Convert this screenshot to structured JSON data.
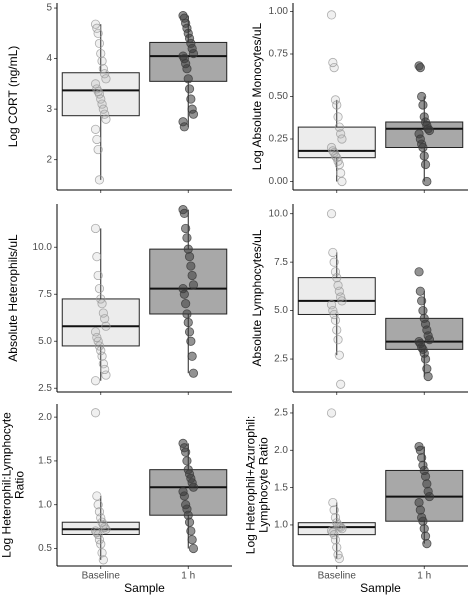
{
  "chart_data": [
    {
      "type": "box",
      "ylabel": [
        "Log CORT (ng/mL)"
      ],
      "ylim": [
        1.4,
        5.1
      ],
      "yticks": [
        2,
        3,
        4,
        5
      ],
      "boxes": [
        {
          "color": "#ececec",
          "point_color": "#9a9a9a",
          "min": 1.6,
          "q1": 2.87,
          "median": 3.37,
          "q3": 3.72,
          "max": 4.68,
          "points": [
            4.68,
            4.6,
            4.5,
            4.3,
            4.1,
            3.95,
            3.8,
            3.7,
            3.6,
            3.5,
            3.4,
            3.35,
            3.3,
            3.2,
            3.1,
            3.0,
            2.9,
            2.8,
            2.6,
            2.4,
            2.2,
            1.6
          ]
        },
        {
          "color": "#a8a8a8",
          "point_color": "#3a3a3a",
          "min": 2.65,
          "q1": 3.55,
          "median": 4.05,
          "q3": 4.32,
          "max": 4.85,
          "points": [
            4.85,
            4.8,
            4.7,
            4.6,
            4.5,
            4.4,
            4.3,
            4.2,
            4.1,
            4.05,
            4.0,
            3.9,
            3.8,
            3.6,
            3.4,
            3.2,
            3.0,
            2.9,
            2.75,
            2.65
          ]
        }
      ]
    },
    {
      "type": "box",
      "ylabel": [
        "Log Absolute Monocytes/uL"
      ],
      "ylim": [
        -0.05,
        1.05
      ],
      "yticks": [
        {
          "value": 0,
          "label": "0.00"
        },
        0.25,
        {
          "value": 0.5,
          "label": "0.50"
        },
        0.75,
        {
          "value": 1,
          "label": "1.00"
        }
      ],
      "boxes": [
        {
          "color": "#ececec",
          "point_color": "#9a9a9a",
          "min": 0,
          "q1": 0.14,
          "median": 0.18,
          "q3": 0.32,
          "max": 0.48,
          "points": [
            0.98,
            0.7,
            0.67,
            0.48,
            0.45,
            0.38,
            0.32,
            0.28,
            0.25,
            0.2,
            0.18,
            0.17,
            0.15,
            0.14,
            0.12,
            0.1,
            0.05,
            0
          ]
        },
        {
          "color": "#a8a8a8",
          "point_color": "#3a3a3a",
          "min": 0,
          "q1": 0.2,
          "median": 0.31,
          "q3": 0.35,
          "max": 0.5,
          "points": [
            0.68,
            0.67,
            0.5,
            0.45,
            0.38,
            0.35,
            0.33,
            0.31,
            0.3,
            0.28,
            0.25,
            0.22,
            0.2,
            0.15,
            0.1,
            0
          ]
        }
      ]
    },
    {
      "type": "box",
      "ylabel": [
        "Absolute Heterophils/uL"
      ],
      "ylim": [
        2.3,
        12.3
      ],
      "yticks": [
        2.5,
        {
          "value": 5,
          "label": "5.0"
        },
        7.5,
        {
          "value": 10,
          "label": "10.0"
        }
      ],
      "boxes": [
        {
          "color": "#ececec",
          "point_color": "#9a9a9a",
          "min": 2.9,
          "q1": 4.75,
          "median": 5.8,
          "q3": 7.25,
          "max": 11.0,
          "points": [
            11.0,
            9.5,
            8.5,
            7.8,
            7.25,
            7.0,
            6.5,
            6.2,
            5.8,
            5.5,
            5.2,
            5.0,
            4.75,
            4.5,
            4.2,
            3.8,
            3.5,
            3.2,
            2.9
          ]
        },
        {
          "color": "#a8a8a8",
          "point_color": "#3a3a3a",
          "min": 3.3,
          "q1": 6.45,
          "median": 7.8,
          "q3": 9.9,
          "max": 12.0,
          "points": [
            12.0,
            11.8,
            11.0,
            10.5,
            9.9,
            9.5,
            9.0,
            8.5,
            8.0,
            7.8,
            7.5,
            7.0,
            6.45,
            6.0,
            5.5,
            5.0,
            4.2,
            3.3
          ]
        }
      ]
    },
    {
      "type": "box",
      "ylabel": [
        "Absolute Lymphocytes/uL"
      ],
      "ylim": [
        0.8,
        10.5
      ],
      "yticks": [
        2.5,
        {
          "value": 5,
          "label": "5.0"
        },
        7.5,
        {
          "value": 10,
          "label": "10.0"
        }
      ],
      "boxes": [
        {
          "color": "#ececec",
          "point_color": "#9a9a9a",
          "min": 2.7,
          "q1": 4.8,
          "median": 5.5,
          "q3": 6.7,
          "max": 8.0,
          "points": [
            10.0,
            8.0,
            7.5,
            7.0,
            6.7,
            6.3,
            6.0,
            5.7,
            5.5,
            5.3,
            5.0,
            4.8,
            4.5,
            4.0,
            3.5,
            2.7,
            1.2
          ]
        },
        {
          "color": "#a8a8a8",
          "point_color": "#3a3a3a",
          "min": 1.6,
          "q1": 3.0,
          "median": 3.4,
          "q3": 4.6,
          "max": 6.0,
          "points": [
            7.0,
            6.0,
            5.5,
            5.0,
            4.6,
            4.3,
            4.0,
            3.7,
            3.5,
            3.4,
            3.3,
            3.1,
            3.0,
            2.8,
            2.5,
            2.0,
            1.6
          ]
        }
      ]
    },
    {
      "type": "box",
      "ylabel": [
        "Log Heterophil:Lymphocyte",
        "Ratio"
      ],
      "ylim": [
        0.3,
        2.15
      ],
      "yticks": [
        0.5,
        {
          "value": 1,
          "label": "1.0"
        },
        1.5,
        {
          "value": 2,
          "label": "2.0"
        }
      ],
      "categories": [
        "Baseline",
        "1 h"
      ],
      "xlabel": "Sample",
      "boxes": [
        {
          "color": "#ececec",
          "point_color": "#9a9a9a",
          "min": 0.37,
          "q1": 0.66,
          "median": 0.72,
          "q3": 0.8,
          "max": 1.1,
          "points": [
            2.05,
            1.1,
            1.0,
            0.92,
            0.85,
            0.8,
            0.77,
            0.74,
            0.72,
            0.7,
            0.68,
            0.66,
            0.6,
            0.55,
            0.45,
            0.37
          ]
        },
        {
          "color": "#a8a8a8",
          "point_color": "#3a3a3a",
          "min": 0.5,
          "q1": 0.88,
          "median": 1.2,
          "q3": 1.4,
          "max": 1.7,
          "points": [
            1.7,
            1.65,
            1.6,
            1.5,
            1.4,
            1.35,
            1.3,
            1.25,
            1.2,
            1.15,
            1.1,
            1.0,
            0.95,
            0.88,
            0.8,
            0.7,
            0.6,
            0.5
          ]
        }
      ]
    },
    {
      "type": "box",
      "ylabel": [
        "Log Heterophil+Azurophil:",
        "Lymphocyte Ratio"
      ],
      "ylim": [
        0.45,
        2.62
      ],
      "yticks": [
        {
          "value": 1,
          "label": "1.0"
        },
        1.5,
        {
          "value": 2,
          "label": "2.0"
        },
        2.5
      ],
      "categories": [
        "Baseline",
        "1 h"
      ],
      "xlabel": "Sample",
      "boxes": [
        {
          "color": "#ececec",
          "point_color": "#9a9a9a",
          "min": 0.55,
          "q1": 0.87,
          "median": 0.97,
          "q3": 1.03,
          "max": 1.3,
          "points": [
            2.5,
            1.3,
            1.2,
            1.1,
            1.03,
            1.0,
            0.98,
            0.97,
            0.95,
            0.92,
            0.9,
            0.87,
            0.8,
            0.7,
            0.6,
            0.55
          ]
        },
        {
          "color": "#a8a8a8",
          "point_color": "#3a3a3a",
          "min": 0.75,
          "q1": 1.05,
          "median": 1.38,
          "q3": 1.73,
          "max": 2.05,
          "points": [
            2.05,
            2.0,
            1.9,
            1.8,
            1.73,
            1.65,
            1.55,
            1.45,
            1.38,
            1.3,
            1.2,
            1.1,
            1.05,
            0.95,
            0.85,
            0.75
          ]
        }
      ]
    }
  ]
}
